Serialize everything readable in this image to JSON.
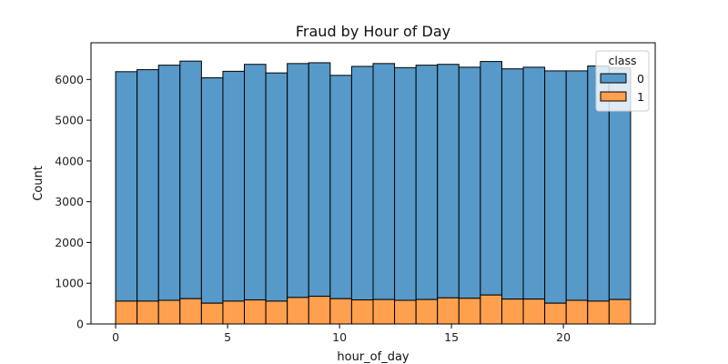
{
  "chart_data": {
    "type": "bar",
    "stacked": true,
    "title": "Fraud by Hour of Day",
    "xlabel": "hour_of_day",
    "ylabel": "Count",
    "x": [
      0,
      1,
      2,
      3,
      4,
      5,
      6,
      7,
      8,
      9,
      10,
      11,
      12,
      13,
      14,
      15,
      16,
      17,
      18,
      19,
      20,
      21,
      22,
      23
    ],
    "xlim": [
      -1.1,
      24.1
    ],
    "ylim": [
      0,
      6900
    ],
    "xticks": [
      0,
      5,
      10,
      15,
      20
    ],
    "yticks": [
      0,
      1000,
      2000,
      3000,
      4000,
      5000,
      6000
    ],
    "series": [
      {
        "name": "0",
        "color": "#5799c9",
        "values": [
          5630,
          5680,
          5770,
          5830,
          5530,
          5640,
          5780,
          5600,
          5740,
          5730,
          5480,
          5730,
          5790,
          5710,
          5750,
          5730,
          5670,
          5730,
          5650,
          5690,
          5700,
          5630,
          5770,
          5680
        ]
      },
      {
        "name": "1",
        "color": "#ffa04e",
        "values": [
          560,
          560,
          580,
          620,
          510,
          560,
          590,
          560,
          650,
          680,
          620,
          590,
          600,
          580,
          600,
          640,
          630,
          710,
          610,
          610,
          510,
          580,
          560,
          600
        ]
      }
    ],
    "legend": {
      "title": "class",
      "placement": "top-right"
    },
    "grid": false
  }
}
